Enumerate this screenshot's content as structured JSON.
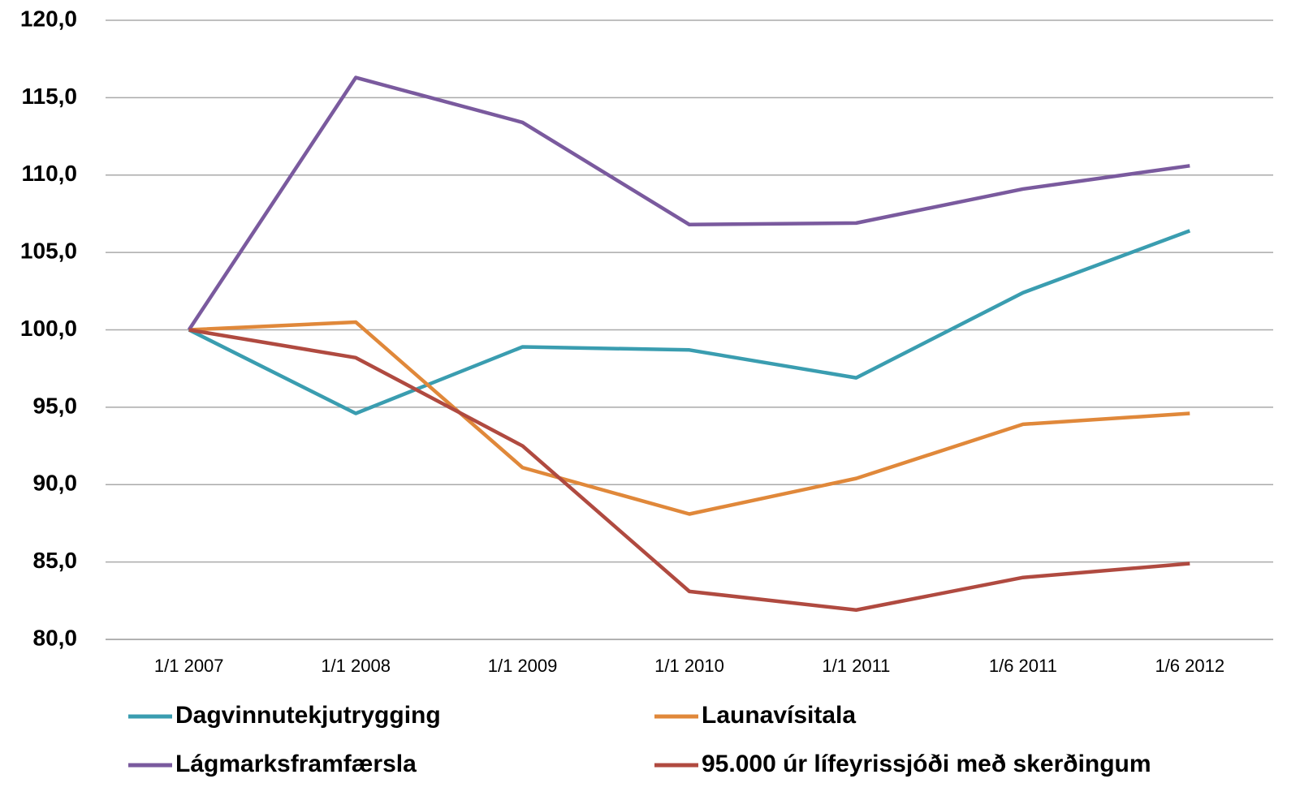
{
  "chart_data": {
    "type": "line",
    "categories": [
      "1/1 2007",
      "1/1 2008",
      "1/1 2009",
      "1/1 2010",
      "1/1 2011",
      "1/6 2011",
      "1/6 2012"
    ],
    "series": [
      {
        "name": "Dagvinnutekjutrygging",
        "color": "#3a9db0",
        "values": [
          100,
          94.6,
          98.9,
          98.7,
          96.9,
          102.4,
          106.4
        ]
      },
      {
        "name": "Launavísitala",
        "color": "#e0883a",
        "values": [
          100,
          100.5,
          91.1,
          88.1,
          90.4,
          93.9,
          94.6
        ]
      },
      {
        "name": "Lágmarksframfærsla",
        "color": "#7a5a9e",
        "values": [
          100,
          116.3,
          113.4,
          106.8,
          106.9,
          109.1,
          110.6
        ]
      },
      {
        "name": "95.000 úr lífeyrissjóði með skerðingum",
        "color": "#b04a40",
        "values": [
          100,
          98.2,
          92.5,
          83.1,
          81.9,
          84.0,
          84.9
        ]
      }
    ],
    "ylim": [
      80,
      120
    ],
    "yticks": [
      {
        "value": 80,
        "label": "80,0"
      },
      {
        "value": 85,
        "label": "85,0"
      },
      {
        "value": 90,
        "label": "90,0"
      },
      {
        "value": 95,
        "label": "95,0"
      },
      {
        "value": 100,
        "label": "100,0"
      },
      {
        "value": 105,
        "label": "105,0"
      },
      {
        "value": 110,
        "label": "110,0"
      },
      {
        "value": 115,
        "label": "115,0"
      },
      {
        "value": 120,
        "label": "120,0"
      }
    ],
    "grid": true
  }
}
